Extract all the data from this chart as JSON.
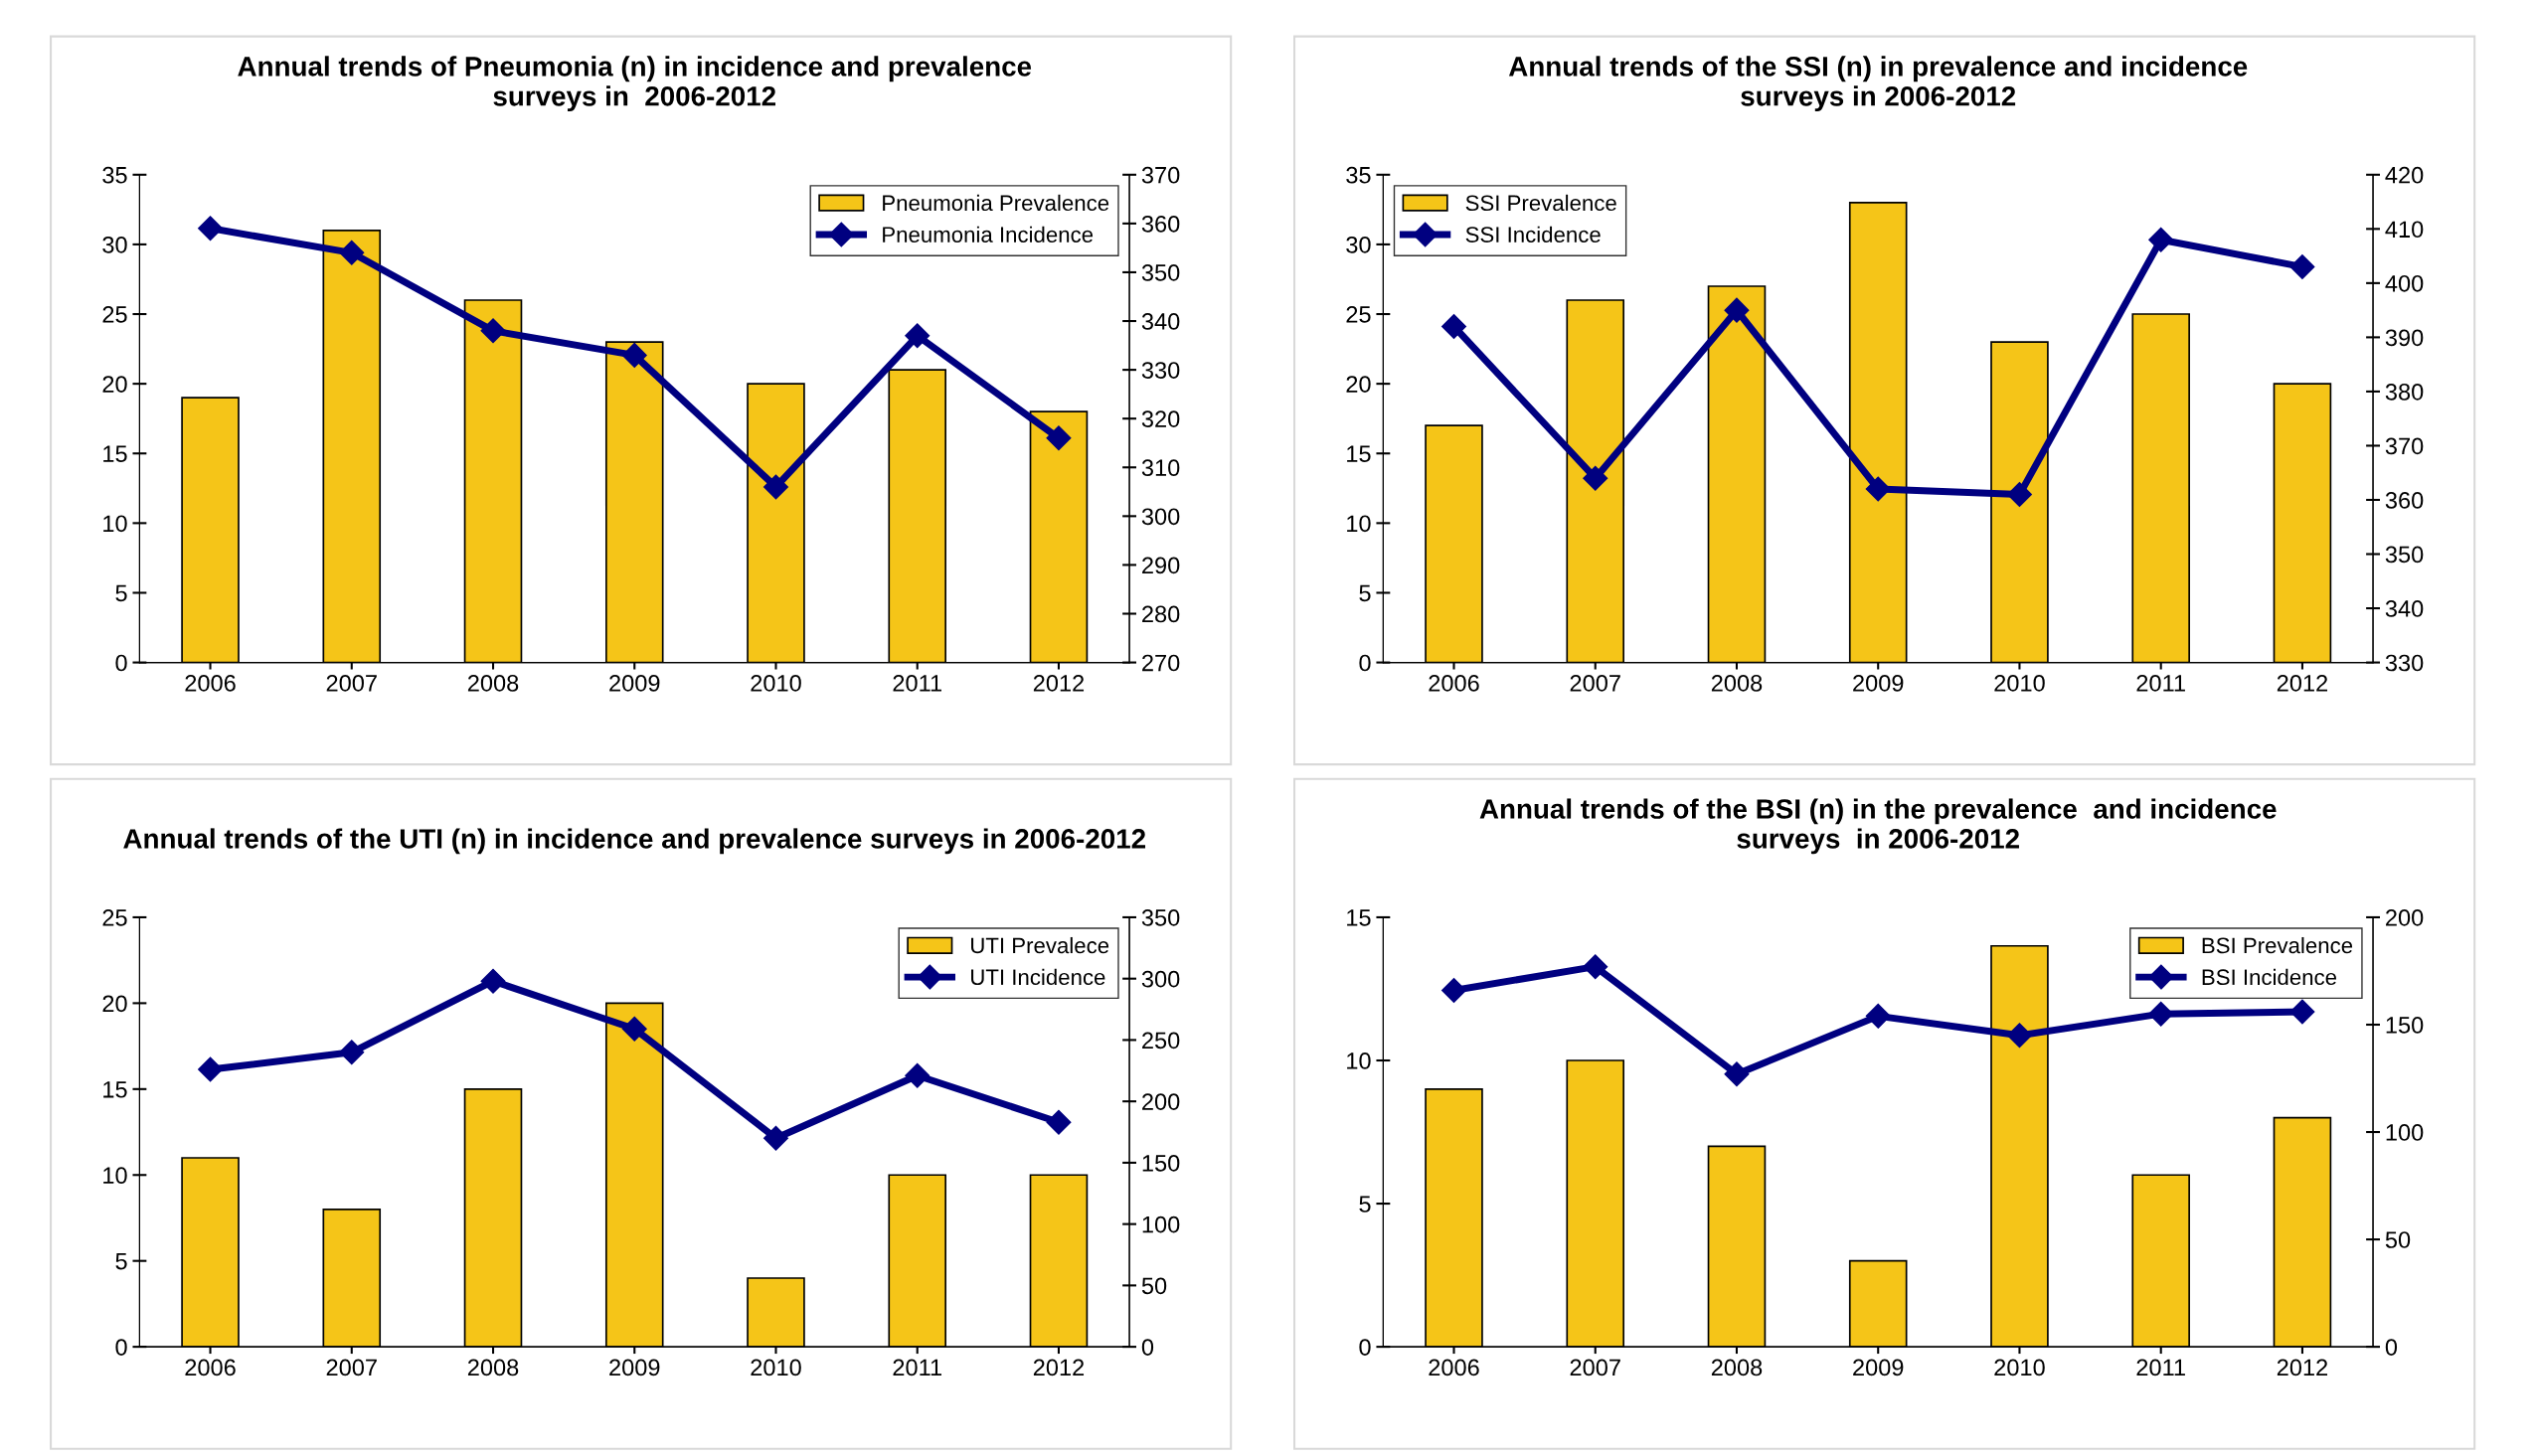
{
  "chart_data": [
    {
      "type": "bar",
      "title": "Annual trends of Pneumonia (n) in incidence and prevalence\nsurveys in  2006-2012",
      "categories": [
        "2006",
        "2007",
        "2008",
        "2009",
        "2010",
        "2011",
        "2012"
      ],
      "series": [
        {
          "name": "Pneumonia Prevalence",
          "color": "#f5c518",
          "values": [
            19,
            31,
            26,
            23,
            20,
            21,
            18
          ]
        },
        {
          "name": "Pneumonia Incidence",
          "type": "line",
          "axis": "y2",
          "color": "#000080",
          "values": [
            359,
            354,
            338,
            333,
            306,
            337,
            316
          ]
        }
      ],
      "ylim": [
        0,
        35
      ],
      "yticks": [
        0,
        5,
        10,
        15,
        20,
        25,
        30,
        35
      ],
      "y2lim": [
        270,
        370
      ],
      "y2ticks": [
        270,
        280,
        290,
        300,
        310,
        320,
        330,
        340,
        350,
        360,
        370
      ],
      "legend": "top right",
      "marker": "diamond",
      "grid": false
    },
    {
      "type": "bar",
      "title": "Annual trends of the SSI (n) in prevalence and incidence\nsurveys in 2006-2012",
      "categories": [
        "2006",
        "2007",
        "2008",
        "2009",
        "2010",
        "2011",
        "2012"
      ],
      "series": [
        {
          "name": "SSI Prevalence",
          "color": "#f5c518",
          "values": [
            17,
            26,
            27,
            33,
            23,
            25,
            20
          ]
        },
        {
          "name": "SSI Incidence",
          "type": "line",
          "axis": "y2",
          "color": "#000080",
          "values": [
            392,
            364,
            395,
            362,
            361,
            408,
            403
          ]
        }
      ],
      "ylim": [
        0,
        35
      ],
      "yticks": [
        0,
        5,
        10,
        15,
        20,
        25,
        30,
        35
      ],
      "y2lim": [
        330,
        420
      ],
      "y2ticks": [
        330,
        340,
        350,
        360,
        370,
        380,
        390,
        400,
        410,
        420
      ],
      "legend": "top left",
      "marker": "diamond",
      "grid": false
    },
    {
      "type": "bar",
      "title": "Annual trends of the UTI (n) in incidence and prevalence surveys in 2006-2012",
      "categories": [
        "2006",
        "2007",
        "2008",
        "2009",
        "2010",
        "2011",
        "2012"
      ],
      "series": [
        {
          "name": "UTI Prevalece",
          "color": "#f5c518",
          "values": [
            11,
            8,
            15,
            20,
            4,
            10,
            10
          ]
        },
        {
          "name": "UTI Incidence",
          "type": "line",
          "axis": "y2",
          "color": "#000080",
          "values": [
            226,
            240,
            298,
            259,
            170,
            221,
            183
          ]
        }
      ],
      "ylim": [
        0,
        25
      ],
      "yticks": [
        0,
        5,
        10,
        15,
        20,
        25
      ],
      "y2lim": [
        0,
        350
      ],
      "y2ticks": [
        0,
        50,
        100,
        150,
        200,
        250,
        300,
        350
      ],
      "legend": "top right",
      "marker": "diamond",
      "grid": false
    },
    {
      "type": "bar",
      "title": "Annual trends of the BSI (n) in the prevalence  and incidence\nsurveys  in 2006-2012",
      "categories": [
        "2006",
        "2007",
        "2008",
        "2009",
        "2010",
        "2011",
        "2012"
      ],
      "series": [
        {
          "name": "BSI Prevalence",
          "color": "#f5c518",
          "values": [
            9,
            10,
            7,
            3,
            14,
            6,
            8
          ]
        },
        {
          "name": "BSI Incidence",
          "type": "line",
          "axis": "y2",
          "color": "#000080",
          "values": [
            166,
            177,
            127,
            154,
            145,
            155,
            156
          ]
        }
      ],
      "ylim": [
        0,
        15
      ],
      "yticks": [
        0,
        5,
        10,
        15
      ],
      "y2lim": [
        0,
        200
      ],
      "y2ticks": [
        0,
        50,
        100,
        150,
        200
      ],
      "legend": "top right",
      "marker": "diamond",
      "grid": false
    }
  ]
}
